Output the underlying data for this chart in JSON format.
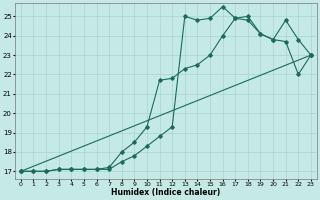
{
  "xlabel": "Humidex (Indice chaleur)",
  "bg_color": "#c5eae5",
  "line_color": "#1a6b5a",
  "grid_color": "#aad4cf",
  "xlim": [
    -0.5,
    23.5
  ],
  "ylim": [
    16.6,
    25.7
  ],
  "xticks": [
    0,
    1,
    2,
    3,
    4,
    5,
    6,
    7,
    8,
    9,
    10,
    11,
    12,
    13,
    14,
    15,
    16,
    17,
    18,
    19,
    20,
    21,
    22,
    23
  ],
  "yticks": [
    17,
    18,
    19,
    20,
    21,
    22,
    23,
    24,
    25
  ],
  "line1_x": [
    0,
    1,
    2,
    3,
    4,
    5,
    6,
    7,
    8,
    9,
    10,
    11,
    12,
    13,
    14,
    15,
    16,
    17,
    18,
    19,
    20,
    21,
    22,
    23
  ],
  "line1_y": [
    17,
    17,
    17,
    17.1,
    17.1,
    17.1,
    17.1,
    17.1,
    17.5,
    17.8,
    18.3,
    18.8,
    19.3,
    25.0,
    24.8,
    24.9,
    25.5,
    24.9,
    25.0,
    24.1,
    23.8,
    24.8,
    23.8,
    23.0
  ],
  "line2_x": [
    0,
    1,
    2,
    3,
    4,
    5,
    6,
    7,
    8,
    9,
    10,
    11,
    12,
    13,
    14,
    15,
    16,
    17,
    18,
    19,
    20,
    21,
    22,
    23
  ],
  "line2_y": [
    17,
    17,
    17,
    17.1,
    17.1,
    17.1,
    17.1,
    17.2,
    18.0,
    18.5,
    19.3,
    21.7,
    21.8,
    22.3,
    22.5,
    23.0,
    24.0,
    24.9,
    24.8,
    24.1,
    23.8,
    23.7,
    22.0,
    23.0
  ],
  "line3_x": [
    0,
    23
  ],
  "line3_y": [
    17,
    23
  ]
}
